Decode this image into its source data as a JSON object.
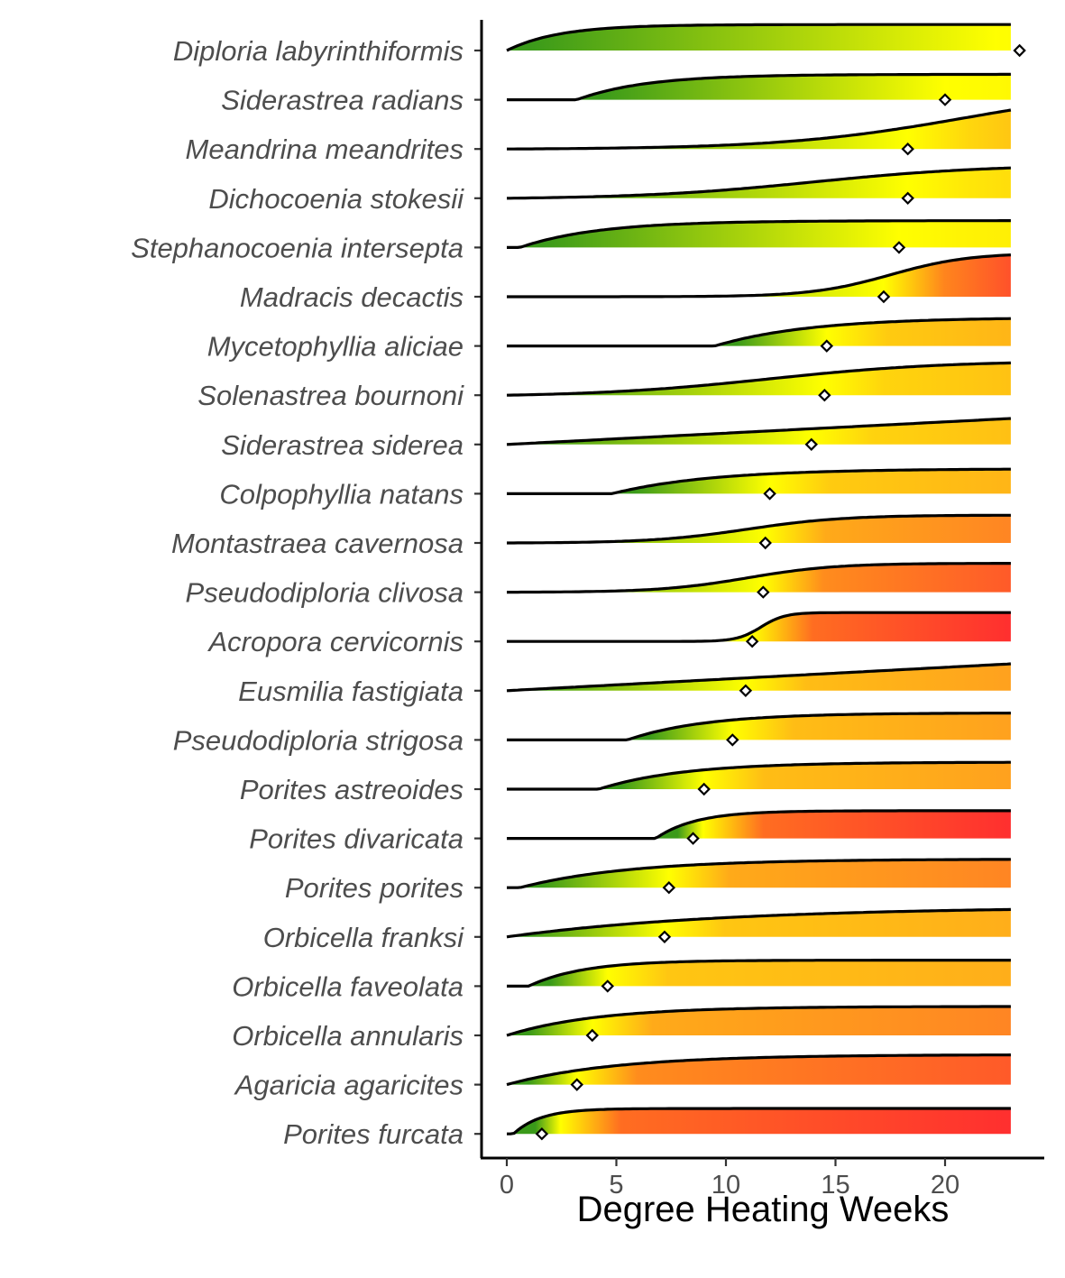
{
  "chart_data": {
    "type": "ridgeline",
    "title": "",
    "xlabel": "Degree Heating Weeks",
    "ylabel": "",
    "xlim": [
      -1.2,
      24.5
    ],
    "x_ticks": [
      0,
      5,
      10,
      15,
      20
    ],
    "x_max_curve": 23,
    "grid": false,
    "legend": "none",
    "fill_colors": {
      "low": "#3a9a1a",
      "mid": "#ffff00",
      "high": "#ff9a20",
      "max": "#ff2f2f"
    },
    "series": [
      {
        "name": "Diploria labyrinthiformis",
        "marker": 23.4,
        "onset": 0.0,
        "curve": "exp",
        "k": 0.42,
        "peak": 0.9,
        "severity": 0.02
      },
      {
        "name": "Siderastrea radians",
        "marker": 20.0,
        "onset": 3.2,
        "curve": "exp",
        "k": 0.32,
        "peak": 0.88,
        "severity": 0.06
      },
      {
        "name": "Meandrina meandrites",
        "marker": 18.3,
        "onset": 0.0,
        "curve": "sig",
        "mid": 21.0,
        "w": 4.2,
        "peak": 1.35,
        "severity": 0.42
      },
      {
        "name": "Dichocoenia stokesii",
        "marker": 18.3,
        "onset": 0.0,
        "curve": "sig",
        "mid": 14.0,
        "w": 4.0,
        "peak": 1.05,
        "severity": 0.25
      },
      {
        "name": "Stephanocoenia intersepta",
        "marker": 17.9,
        "onset": 0.6,
        "curve": "exp",
        "k": 0.28,
        "peak": 0.93,
        "severity": 0.12
      },
      {
        "name": "Madracis decactis",
        "marker": 17.2,
        "onset": 0.0,
        "curve": "sig",
        "mid": 17.5,
        "w": 1.8,
        "peak": 1.45,
        "severity": 0.92
      },
      {
        "name": "Mycetophyllia aliciae",
        "marker": 14.6,
        "onset": 9.5,
        "curve": "exp",
        "k": 0.23,
        "peak": 0.95,
        "severity": 0.55
      },
      {
        "name": "Solenastrea bournoni",
        "marker": 14.5,
        "onset": 0.0,
        "curve": "sig",
        "mid": 12.0,
        "w": 4.0,
        "peak": 1.12,
        "severity": 0.45
      },
      {
        "name": "Siderastrea siderea",
        "marker": 13.9,
        "onset": 0.0,
        "curve": "lin",
        "peak": 0.9,
        "severity": 0.47
      },
      {
        "name": "Colpophyllia natans",
        "marker": 12.0,
        "onset": 4.8,
        "curve": "exp",
        "k": 0.22,
        "peak": 0.85,
        "severity": 0.55
      },
      {
        "name": "Montastraea cavernosa",
        "marker": 11.8,
        "onset": 0.0,
        "curve": "sig",
        "mid": 11.0,
        "w": 2.2,
        "peak": 0.96,
        "severity": 0.8
      },
      {
        "name": "Pseudodiploria clivosa",
        "marker": 11.7,
        "onset": 0.0,
        "curve": "sig",
        "mid": 11.0,
        "w": 2.0,
        "peak": 1.0,
        "severity": 0.9
      },
      {
        "name": "Acropora cervicornis",
        "marker": 11.2,
        "onset": 0.0,
        "curve": "sig",
        "mid": 11.6,
        "w": 0.55,
        "peak": 1.0,
        "severity": 1.0
      },
      {
        "name": "Eusmilia fastigiata",
        "marker": 10.9,
        "onset": 0.0,
        "curve": "lin",
        "peak": 0.93,
        "severity": 0.7
      },
      {
        "name": "Pseudodiploria strigosa",
        "marker": 10.3,
        "onset": 5.5,
        "curve": "exp",
        "k": 0.28,
        "peak": 0.93,
        "severity": 0.7
      },
      {
        "name": "Porites astreoides",
        "marker": 9.0,
        "onset": 4.2,
        "curve": "exp",
        "k": 0.26,
        "peak": 0.93,
        "severity": 0.7
      },
      {
        "name": "Porites divaricata",
        "marker": 8.5,
        "onset": 6.8,
        "curve": "exp",
        "k": 0.55,
        "peak": 0.96,
        "severity": 1.0
      },
      {
        "name": "Porites porites",
        "marker": 7.4,
        "onset": 0.6,
        "curve": "exp",
        "k": 0.2,
        "peak": 0.98,
        "severity": 0.8
      },
      {
        "name": "Orbicella franksi",
        "marker": 7.2,
        "onset": 0.0,
        "curve": "exp",
        "k": 0.1,
        "peak": 0.95,
        "severity": 0.6
      },
      {
        "name": "Orbicella faveolata",
        "marker": 4.6,
        "onset": 1.0,
        "curve": "exp",
        "k": 0.4,
        "peak": 0.9,
        "severity": 0.6
      },
      {
        "name": "Orbicella annularis",
        "marker": 3.9,
        "onset": 0.0,
        "curve": "exp",
        "k": 0.24,
        "peak": 1.0,
        "severity": 0.8
      },
      {
        "name": "Agaricia agaricites",
        "marker": 3.2,
        "onset": 0.0,
        "curve": "exp",
        "k": 0.2,
        "peak": 1.03,
        "severity": 0.9
      },
      {
        "name": "Porites furcata",
        "marker": 1.6,
        "onset": 0.3,
        "curve": "exp",
        "k": 0.8,
        "peak": 0.88,
        "severity": 1.0
      }
    ]
  }
}
